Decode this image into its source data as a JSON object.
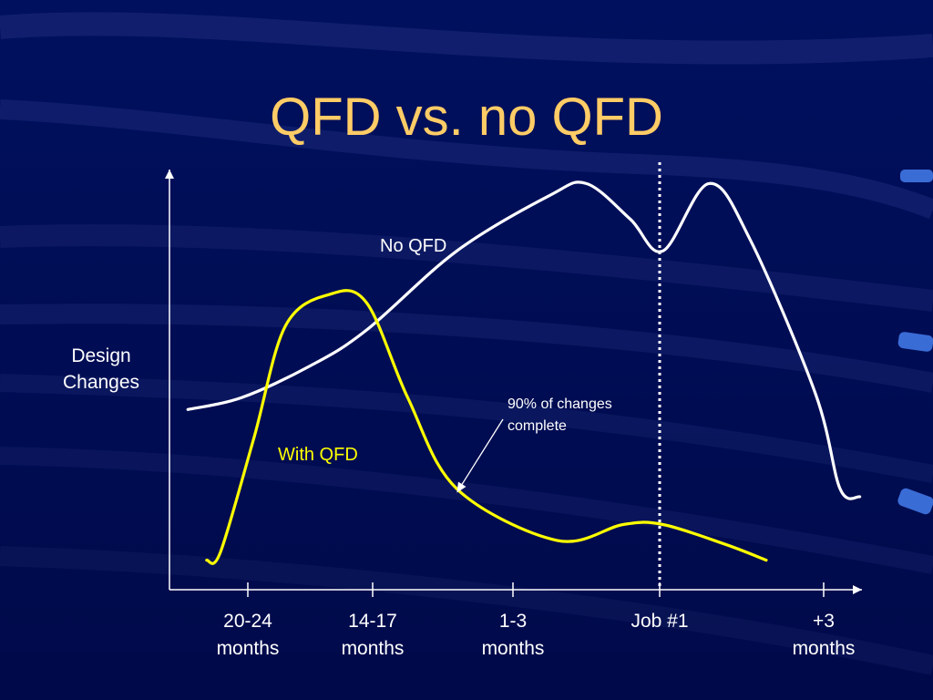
{
  "slide": {
    "title": "QFD vs. no QFD"
  },
  "colors": {
    "background": "#000c5c",
    "title": "#ffcc66",
    "no_qfd": "#ffffff",
    "with_qfd": "#ffff00",
    "axis": "#ffffff"
  },
  "chart_data": {
    "type": "line",
    "title": "QFD vs. no QFD",
    "ylabel_lines": [
      "Design",
      "Changes"
    ],
    "xlabel": "",
    "x_unit": "time position (0 = 20-24 months, 1 = 14-17 months, 2 = 1-3 months, 3 = Job #1, 4 = +3 months)",
    "ylim": [
      0,
      100
    ],
    "xlim": [
      -0.5,
      4.4
    ],
    "grid": false,
    "ticks": [
      {
        "x": 0,
        "lines": [
          "20-24",
          "months"
        ]
      },
      {
        "x": 1,
        "lines": [
          "14-17",
          "months"
        ]
      },
      {
        "x": 2,
        "lines": [
          "1-3",
          "months"
        ]
      },
      {
        "x": 3,
        "lines": [
          "Job #1"
        ]
      },
      {
        "x": 4,
        "lines": [
          "+3",
          "months"
        ]
      }
    ],
    "series": [
      {
        "name": "No QFD",
        "points": [
          [
            -0.48,
            42
          ],
          [
            -0.05,
            45
          ],
          [
            0.5,
            53
          ],
          [
            0.95,
            62
          ],
          [
            1.6,
            82
          ],
          [
            2.25,
            96
          ],
          [
            2.5,
            99
          ],
          [
            2.8,
            90
          ],
          [
            3.02,
            82
          ],
          [
            3.3,
            99
          ],
          [
            3.55,
            85
          ],
          [
            3.95,
            46
          ],
          [
            4.1,
            22
          ],
          [
            4.22,
            20
          ]
        ]
      },
      {
        "name": "With QFD",
        "points": [
          [
            -0.33,
            4
          ],
          [
            -0.22,
            6
          ],
          [
            0.05,
            35
          ],
          [
            0.3,
            63
          ],
          [
            0.65,
            71
          ],
          [
            0.95,
            69
          ],
          [
            1.25,
            45
          ],
          [
            1.6,
            22
          ],
          [
            2.3,
            9
          ],
          [
            2.75,
            13
          ],
          [
            3.02,
            13
          ],
          [
            3.4,
            8
          ],
          [
            3.65,
            4
          ]
        ]
      }
    ],
    "vertical_marker": {
      "x": 3.0,
      "style": "dotted"
    },
    "annotations": [
      {
        "lines": [
          "90% of changes",
          "complete"
        ],
        "arrow_to": [
          1.6,
          21
        ]
      }
    ]
  }
}
